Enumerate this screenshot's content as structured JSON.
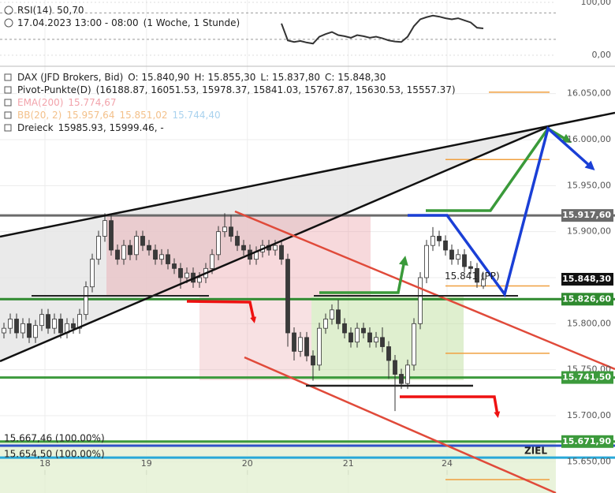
{
  "chart_data": [
    {
      "type": "candlestick",
      "legend": [
        {
          "parts": [
            {
              "text": "DAX (JFD Brokers, Bid)",
              "color": "#222"
            },
            {
              "text": "O: 15.840,90",
              "color": "#222"
            },
            {
              "text": "H: 15.855,30",
              "color": "#222"
            },
            {
              "text": "L: 15.837,80",
              "color": "#222"
            },
            {
              "text": "C: 15.848,30",
              "color": "#222"
            }
          ]
        },
        {
          "parts": [
            {
              "text": "Pivot-Punkte(D)",
              "color": "#222"
            },
            {
              "text": "(16188.87, 16051.53, 15978.37, 15841.03, 15767.87, 15630.53, 15557.37)",
              "color": "#222"
            }
          ]
        },
        {
          "parts": [
            {
              "text": "EMA(200)",
              "color": "#f2a3ab"
            },
            {
              "text": "15.774,67",
              "color": "#f2a3ab"
            }
          ]
        },
        {
          "parts": [
            {
              "text": "BB(20, 2)",
              "color": "#f3c08a"
            },
            {
              "text": "15.957,64",
              "color": "#f3c08a"
            },
            {
              "text": "15.851,02",
              "color": "#f3c08a"
            },
            {
              "text": "15.744,40",
              "color": "#a9d2ee"
            }
          ]
        },
        {
          "parts": [
            {
              "text": "Dreieck",
              "color": "#222"
            },
            {
              "text": "15985.93, 15999.46, -",
              "color": "#222"
            }
          ]
        }
      ],
      "categories": [
        null,
        null,
        null,
        null,
        null,
        null,
        null,
        null,
        null,
        null,
        null,
        null,
        null,
        null,
        null,
        null,
        null,
        null,
        null,
        null,
        null,
        null,
        null,
        null,
        null,
        null,
        null,
        null,
        null,
        null,
        null,
        null,
        null,
        null,
        null,
        null,
        null,
        null,
        null,
        null,
        null,
        null,
        null,
        null,
        null,
        null,
        null,
        null,
        null,
        null,
        null,
        null,
        null,
        null,
        null,
        null,
        null,
        null,
        null,
        null,
        null,
        null,
        null,
        null,
        null,
        null,
        null,
        null,
        null,
        null,
        null,
        null,
        null,
        null,
        null,
        null,
        null
      ],
      "open": [
        15790,
        15795,
        15805,
        15790,
        15800,
        15785,
        15798,
        15810,
        15795,
        15805,
        15790,
        15800,
        15795,
        15810,
        15840,
        15870,
        15895,
        15912,
        15880,
        15870,
        15885,
        15875,
        15895,
        15885,
        15880,
        15870,
        15875,
        15865,
        15860,
        15850,
        15855,
        15845,
        15850,
        15860,
        15875,
        15900,
        15905,
        15895,
        15885,
        15880,
        15870,
        15878,
        15885,
        15880,
        15885,
        15870,
        15790,
        15770,
        15785,
        15765,
        15755,
        15795,
        15805,
        15815,
        15800,
        15790,
        15780,
        15795,
        15790,
        15780,
        15785,
        15775,
        15760,
        15745,
        15735,
        15755,
        15800,
        15850,
        15885,
        15895,
        15890,
        15880,
        15870,
        15875,
        15862,
        15860,
        15840.9
      ],
      "high": [
        15801,
        15811,
        15811,
        15806,
        15806,
        15804,
        15816,
        15816,
        15811,
        15811,
        15806,
        15806,
        15816,
        15846,
        15876,
        15901,
        15920,
        15918,
        15886,
        15891,
        15891,
        15901,
        15901,
        15891,
        15886,
        15881,
        15881,
        15871,
        15866,
        15861,
        15861,
        15856,
        15866,
        15881,
        15906,
        15920,
        15918,
        15901,
        15891,
        15886,
        15884,
        15891,
        15891,
        15891,
        15891,
        15876,
        15796,
        15791,
        15791,
        15771,
        15801,
        15811,
        15821,
        15826,
        15806,
        15796,
        15801,
        15801,
        15796,
        15791,
        15796,
        15781,
        15766,
        15751,
        15761,
        15806,
        15856,
        15891,
        15905,
        15901,
        15896,
        15886,
        15881,
        15881,
        15868,
        15866,
        15855.3
      ],
      "low": [
        15784,
        15789,
        15784,
        15784,
        15779,
        15779,
        15792,
        15789,
        15789,
        15784,
        15784,
        15789,
        15789,
        15804,
        15834,
        15864,
        15889,
        15874,
        15864,
        15864,
        15869,
        15869,
        15879,
        15874,
        15864,
        15864,
        15859,
        15854,
        15838,
        15844,
        15839,
        15839,
        15844,
        15854,
        15869,
        15894,
        15889,
        15879,
        15874,
        15864,
        15864,
        15872,
        15874,
        15874,
        15864,
        15775,
        15760,
        15764,
        15759,
        15738,
        15749,
        15789,
        15799,
        15794,
        15784,
        15774,
        15774,
        15784,
        15774,
        15774,
        15769,
        15740,
        15705,
        15729,
        15729,
        15749,
        15794,
        15844,
        15879,
        15884,
        15874,
        15864,
        15864,
        15856,
        15854,
        15839,
        15837.8
      ],
      "close": [
        15795,
        15805,
        15790,
        15800,
        15785,
        15798,
        15810,
        15795,
        15805,
        15790,
        15800,
        15795,
        15810,
        15840,
        15870,
        15895,
        15912,
        15880,
        15870,
        15885,
        15875,
        15895,
        15885,
        15880,
        15870,
        15875,
        15865,
        15860,
        15850,
        15855,
        15845,
        15850,
        15860,
        15875,
        15900,
        15905,
        15895,
        15885,
        15880,
        15870,
        15878,
        15885,
        15880,
        15885,
        15870,
        15790,
        15770,
        15785,
        15765,
        15755,
        15795,
        15805,
        15815,
        15800,
        15790,
        15780,
        15795,
        15790,
        15780,
        15785,
        15775,
        15760,
        15745,
        15735,
        15755,
        15800,
        15850,
        15885,
        15895,
        15890,
        15880,
        15870,
        15875,
        15862,
        15860,
        15845,
        15848.3
      ],
      "up_color": "#ffffff",
      "down_color": "#3a3a3a",
      "outline_color": "#333333",
      "xlim": [
        -0.625,
        87.5
      ],
      "xticks": [
        {
          "value": 6.5,
          "label": "18"
        },
        {
          "value": 22.6,
          "label": "19"
        },
        {
          "value": 38.6,
          "label": "20"
        },
        {
          "value": 54.6,
          "label": "21"
        },
        {
          "value": 70.25,
          "label": "24"
        }
      ],
      "ylim": [
        15616,
        16078
      ],
      "yticks": [
        {
          "value": 16050,
          "label": "16.050,00"
        },
        {
          "value": 16000,
          "label": "16.000,00"
        },
        {
          "value": 15950,
          "label": "15.950,00"
        },
        {
          "value": 15900,
          "label": "15.900,00"
        },
        {
          "value": 15850,
          "label": "15.850,00"
        },
        {
          "value": 15800,
          "label": "15.800,00"
        },
        {
          "value": 15750,
          "label": "15.750,00"
        },
        {
          "value": 15700,
          "label": "15.700,00"
        },
        {
          "value": 15650,
          "label": "15.650,00"
        }
      ],
      "grid": true,
      "levels": [
        {
          "value": 15917.6,
          "label": "15.917,60",
          "color": "#6b6b6b"
        },
        {
          "value": 15826.6,
          "label": "15.826,60",
          "color": "#2f8a2f"
        },
        {
          "value": 15741.5,
          "label": "15.741,50",
          "color": "#3c9a3c"
        },
        {
          "value": 15671.9,
          "label": "15.671,90",
          "color": "#3c9a3c"
        }
      ],
      "last_price": {
        "value": 15848.3,
        "label": "15.848,30",
        "color": "#111111"
      },
      "fib_lines": [
        {
          "value": 15667.46,
          "label": "15.667,46 (100.00%)",
          "color": "#2f52c8"
        },
        {
          "value": 15654.5,
          "label": "15.654,50 (100.00%)",
          "color": "#27a8d8"
        }
      ],
      "pivot": {
        "values": [
          16188.87,
          16051.53,
          15978.37,
          15841.03,
          15767.87,
          15630.53,
          15557.37
        ],
        "label": "15.841 (PP)",
        "color": "#f0a040"
      },
      "target_label": "ZIEL"
    },
    {
      "type": "line",
      "legend": [
        {
          "parts": [
            {
              "text": "RSI(14)",
              "color": "#222"
            },
            {
              "text": "50,70",
              "color": "#222"
            }
          ]
        },
        {
          "parts": [
            {
              "text": "17.04.2023 13:00 - 08:00",
              "color": "#222"
            },
            {
              "text": "(1 Woche, 1 Stunde)",
              "color": "#222"
            }
          ]
        }
      ],
      "categories": [
        null,
        null,
        null,
        null,
        null,
        null,
        null,
        null,
        null,
        null,
        null,
        null,
        null,
        null,
        null,
        null,
        null,
        null,
        null,
        null,
        null,
        null,
        null,
        null,
        null,
        null,
        null,
        null,
        null,
        null,
        null,
        null,
        null,
        null,
        null,
        null,
        null,
        null,
        null,
        null,
        null,
        null,
        null,
        null,
        null,
        null,
        null,
        null,
        null,
        null,
        null,
        null,
        null,
        null,
        null,
        null,
        null,
        null,
        null,
        null,
        null,
        null,
        null,
        null,
        null,
        null,
        null,
        null,
        null,
        null,
        null,
        null,
        null,
        null,
        null,
        null,
        null
      ],
      "series": [
        {
          "name": "RSI(14)",
          "color": "#333333",
          "values": [
            null,
            null,
            null,
            null,
            null,
            null,
            null,
            null,
            null,
            null,
            null,
            null,
            null,
            null,
            null,
            null,
            null,
            null,
            null,
            null,
            null,
            null,
            null,
            null,
            null,
            null,
            null,
            null,
            null,
            null,
            null,
            null,
            null,
            null,
            null,
            null,
            null,
            null,
            null,
            null,
            null,
            null,
            null,
            null,
            60,
            28,
            25,
            27,
            24,
            22,
            35,
            40,
            44,
            38,
            36,
            33,
            38,
            36,
            33,
            35,
            32,
            28,
            26,
            25,
            35,
            55,
            68,
            72,
            75,
            73,
            70,
            68,
            70,
            66,
            62,
            52,
            50.7
          ]
        }
      ],
      "xlim": [
        -0.625,
        87.5
      ],
      "ylim": [
        0,
        100
      ],
      "yticks": [
        {
          "value": 100,
          "label": "100,00"
        },
        {
          "value": 0,
          "label": "0,00"
        }
      ],
      "guides": [
        80,
        30
      ]
    }
  ]
}
